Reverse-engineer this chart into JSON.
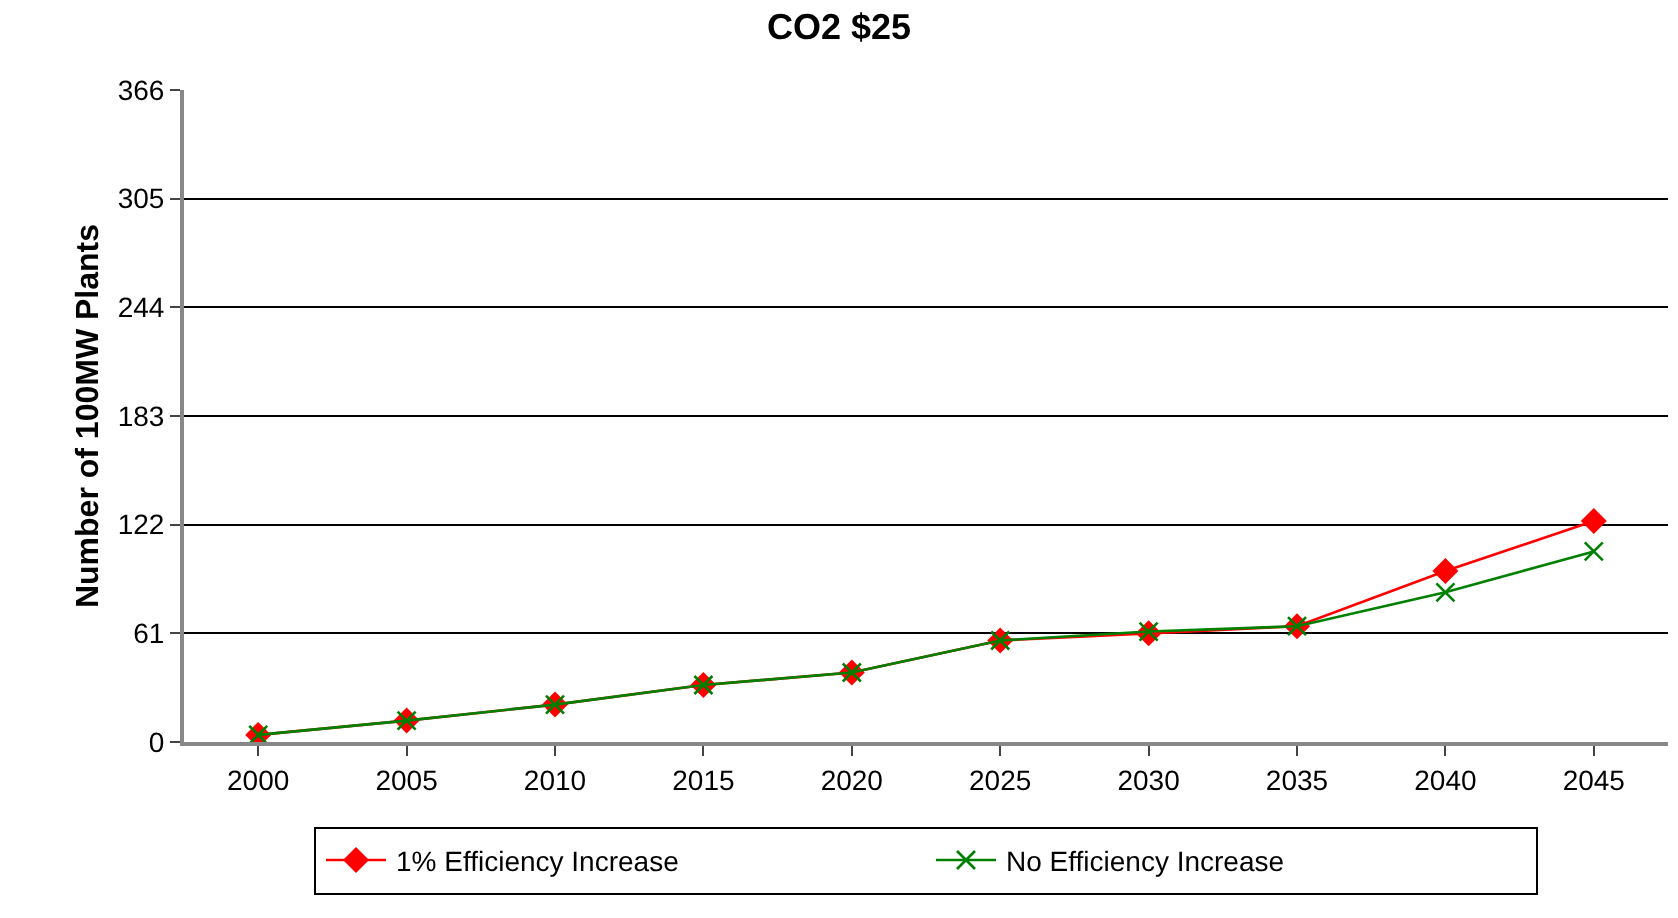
{
  "chart_data": {
    "type": "line",
    "title": "CO2 $25",
    "ylabel": "Number of 100MW Plants",
    "categories": [
      "2000",
      "2005",
      "2010",
      "2015",
      "2020",
      "2025",
      "2030",
      "2035",
      "2040",
      "2045"
    ],
    "series": [
      {
        "name": "1% Efficiency Increase",
        "color": "#ff0000",
        "marker": "diamond",
        "values": [
          4,
          12,
          21,
          32,
          39,
          57,
          61,
          65,
          96,
          124
        ]
      },
      {
        "name": "No Efficiency Increase",
        "color": "#008000",
        "marker": "cross",
        "values": [
          4,
          12,
          21,
          32,
          39,
          57,
          62,
          65,
          84,
          107
        ]
      }
    ],
    "ylim": [
      0,
      366
    ],
    "yticks": [
      0,
      61,
      122,
      183,
      244,
      305,
      366
    ],
    "grid": "y",
    "legend": "bottom",
    "line_style": "solid"
  }
}
